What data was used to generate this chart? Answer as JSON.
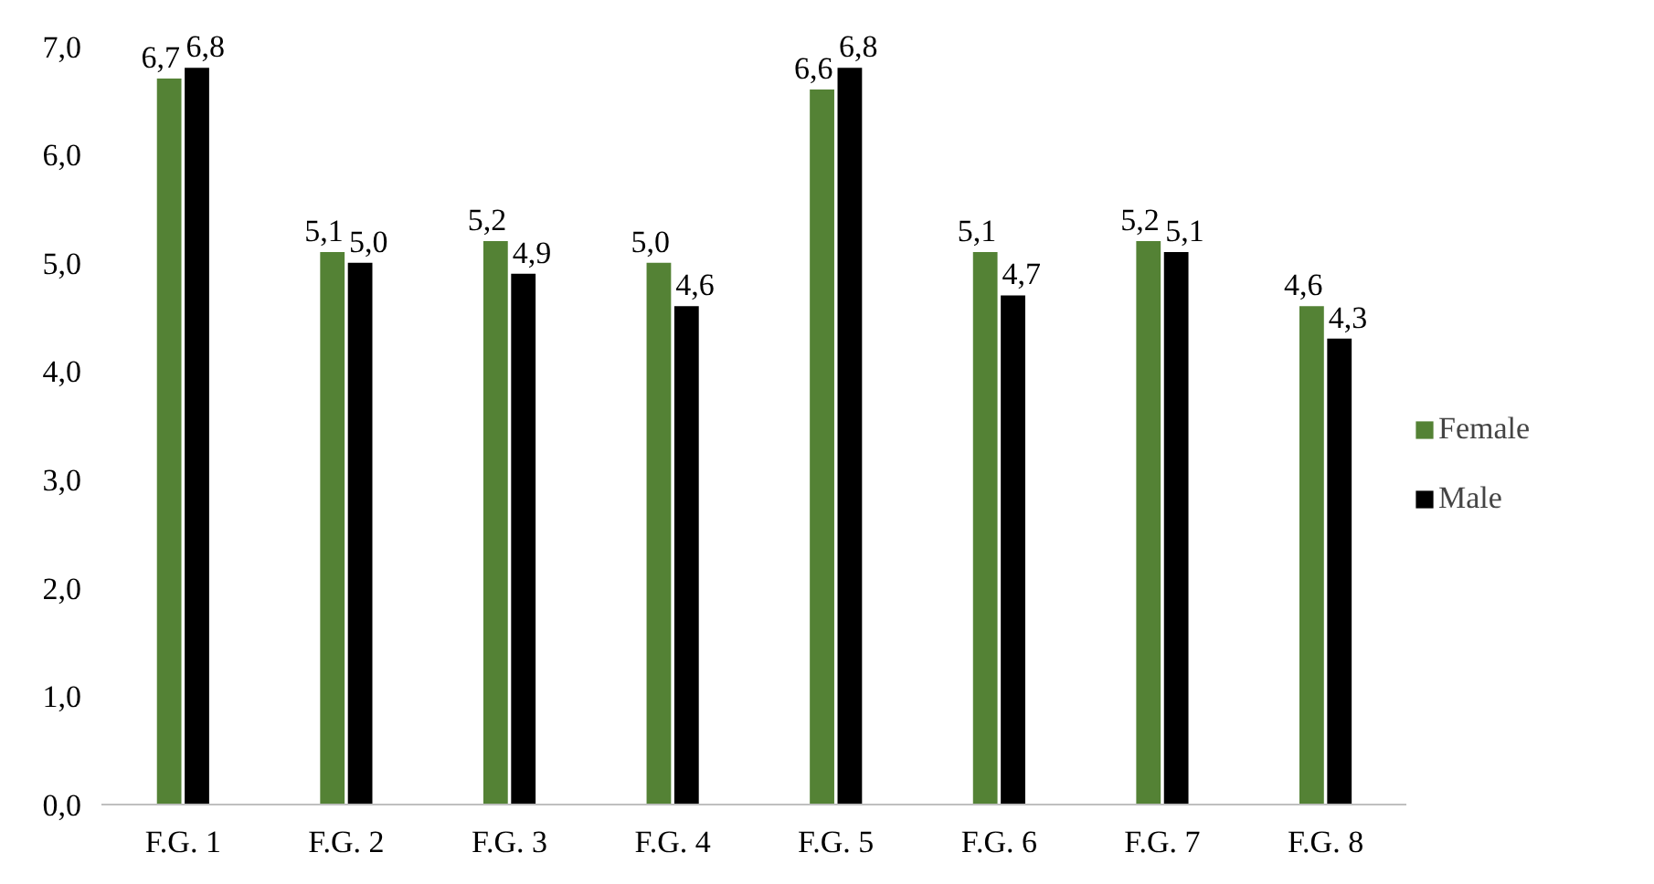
{
  "chart_data": {
    "type": "bar",
    "categories": [
      "F.G. 1",
      "F.G. 2",
      "F.G. 3",
      "F.G. 4",
      "F.G. 5",
      "F.G. 6",
      "F.G. 7",
      "F.G. 8"
    ],
    "series": [
      {
        "name": "Female",
        "color": "#548235",
        "values": [
          6.7,
          5.1,
          5.2,
          5.0,
          6.6,
          5.1,
          5.2,
          4.6
        ],
        "value_labels": [
          "6,7",
          "5,1",
          "5,2",
          "5,0",
          "6,6",
          "5,1",
          "5,2",
          "4,6"
        ]
      },
      {
        "name": "Male",
        "color": "#000000",
        "values": [
          6.8,
          5.0,
          4.9,
          4.6,
          6.8,
          4.7,
          5.1,
          4.3
        ],
        "value_labels": [
          "6,8",
          "5,0",
          "4,9",
          "4,6",
          "6,8",
          "4,7",
          "5,1",
          "4,3"
        ]
      }
    ],
    "ylim": [
      0,
      7
    ],
    "yticks": [
      {
        "value": 0,
        "label": "0,0"
      },
      {
        "value": 1,
        "label": "1,0"
      },
      {
        "value": 2,
        "label": "2,0"
      },
      {
        "value": 3,
        "label": "3,0"
      },
      {
        "value": 4,
        "label": "4,0"
      },
      {
        "value": 5,
        "label": "5,0"
      },
      {
        "value": 6,
        "label": "6,0"
      },
      {
        "value": 7,
        "label": "7,0"
      }
    ],
    "grid": false,
    "legend": "right"
  }
}
